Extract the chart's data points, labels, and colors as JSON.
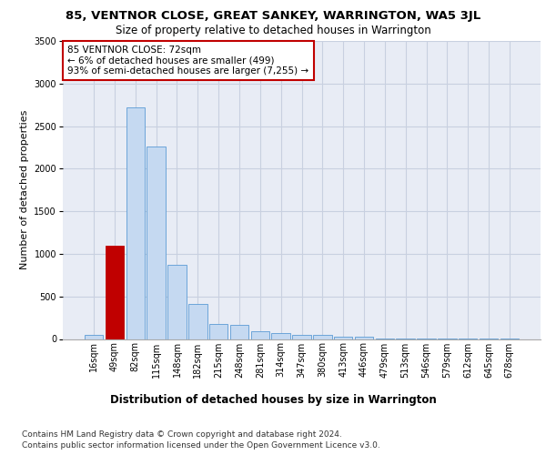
{
  "title": "85, VENTNOR CLOSE, GREAT SANKEY, WARRINGTON, WA5 3JL",
  "subtitle": "Size of property relative to detached houses in Warrington",
  "xlabel": "Distribution of detached houses by size in Warrington",
  "ylabel": "Number of detached properties",
  "categories": [
    "16sqm",
    "49sqm",
    "82sqm",
    "115sqm",
    "148sqm",
    "182sqm",
    "215sqm",
    "248sqm",
    "281sqm",
    "314sqm",
    "347sqm",
    "380sqm",
    "413sqm",
    "446sqm",
    "479sqm",
    "513sqm",
    "546sqm",
    "579sqm",
    "612sqm",
    "645sqm",
    "678sqm"
  ],
  "values": [
    50,
    1100,
    2720,
    2260,
    870,
    410,
    175,
    170,
    95,
    65,
    50,
    50,
    30,
    25,
    10,
    5,
    5,
    5,
    3,
    3,
    2
  ],
  "highlight_index": 1,
  "bar_color": "#c5d9f1",
  "bar_edge_color": "#5b9bd5",
  "highlight_bar_color": "#c00000",
  "highlight_bar_edge_color": "#c00000",
  "ylim": [
    0,
    3500
  ],
  "yticks": [
    0,
    500,
    1000,
    1500,
    2000,
    2500,
    3000,
    3500
  ],
  "grid_color": "#c8d0e0",
  "bg_color": "#e8ecf5",
  "annotation_text": "85 VENTNOR CLOSE: 72sqm\n← 6% of detached houses are smaller (499)\n93% of semi-detached houses are larger (7,255) →",
  "annotation_box_color": "#ffffff",
  "annotation_box_edge_color": "#c00000",
  "footer_line1": "Contains HM Land Registry data © Crown copyright and database right 2024.",
  "footer_line2": "Contains public sector information licensed under the Open Government Licence v3.0.",
  "title_fontsize": 9.5,
  "subtitle_fontsize": 8.5,
  "xlabel_fontsize": 8.5,
  "ylabel_fontsize": 8,
  "tick_fontsize": 7,
  "footer_fontsize": 6.5,
  "annotation_fontsize": 7.5
}
